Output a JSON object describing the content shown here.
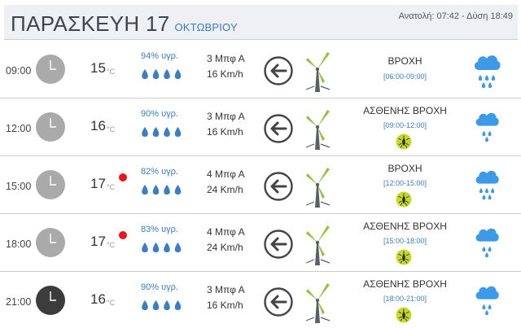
{
  "header": {
    "day": "ΠΑΡΑΣΚΕΥΗ 17",
    "month": "ΟΚΤΩΒΡΙΟΥ",
    "sun": "Ανατολή: 07:42 - Δύση 18:49"
  },
  "colors": {
    "accent": "#3a7ec5",
    "rain_icon": "#3d9ae8",
    "alert_fill": "#c6d92a",
    "hot_dot": "#e8161c",
    "turbine_blade": "#8fc43a",
    "clock_day": "#aaaaaa",
    "clock_night": "#3c3c3c"
  },
  "rows": [
    {
      "time": "09:00",
      "clock_icon": "clock-day-icon",
      "temp": "15",
      "unit": "°C",
      "hot": false,
      "humidity": "94% υγρ.",
      "drops_icon": "water-drops-icon",
      "wind_bf": "3 Μπφ Α",
      "wind_kmh": "16 Km/h",
      "wind_icon": "arrow-left-icon",
      "turbine_icon": "wind-turbine-icon",
      "description": "ΒΡΟΧΗ",
      "range": "[06:00-09:00]",
      "alert": false,
      "weather_icon": "heavy-rain-cloud-icon"
    },
    {
      "time": "12:00",
      "clock_icon": "clock-day-icon",
      "temp": "16",
      "unit": "°C",
      "hot": false,
      "humidity": "90% υγρ.",
      "drops_icon": "water-drops-icon",
      "wind_bf": "3 Μπφ Α",
      "wind_kmh": "16 Km/h",
      "wind_icon": "arrow-left-icon",
      "turbine_icon": "wind-turbine-icon",
      "description": "ΑΣΘΕΝΗΣ ΒΡΟΧΗ",
      "range": "[09:00-12:00]",
      "alert": true,
      "alert_icon": "mosquito-alert-icon",
      "weather_icon": "light-rain-cloud-icon"
    },
    {
      "time": "15:00",
      "clock_icon": "clock-day-icon",
      "temp": "17",
      "unit": "°C",
      "hot": true,
      "humidity": "82% υγρ.",
      "drops_icon": "water-drops-icon",
      "wind_bf": "4 Μπφ Α",
      "wind_kmh": "24 Km/h",
      "wind_icon": "arrow-left-icon",
      "turbine_icon": "wind-turbine-icon",
      "description": "ΒΡΟΧΗ",
      "range": "[12:00-15:00]",
      "alert": true,
      "alert_icon": "mosquito-alert-icon",
      "weather_icon": "heavy-rain-cloud-icon"
    },
    {
      "time": "18:00",
      "clock_icon": "clock-day-icon",
      "temp": "17",
      "unit": "°C",
      "hot": true,
      "humidity": "83% υγρ.",
      "drops_icon": "water-drops-icon",
      "wind_bf": "4 Μπφ Α",
      "wind_kmh": "24 Km/h",
      "wind_icon": "arrow-left-icon",
      "turbine_icon": "wind-turbine-icon",
      "description": "ΑΣΘΕΝΗΣ ΒΡΟΧΗ",
      "range": "[15:00-18:00]",
      "alert": true,
      "alert_icon": "mosquito-alert-icon",
      "weather_icon": "light-rain-cloud-icon"
    },
    {
      "time": "21:00",
      "clock_icon": "clock-night-icon",
      "temp": "16",
      "unit": "°C",
      "hot": false,
      "humidity": "90% υγρ.",
      "drops_icon": "water-drops-icon",
      "wind_bf": "3 Μπφ Α",
      "wind_kmh": "16 Km/h",
      "wind_icon": "arrow-left-icon",
      "turbine_icon": "wind-turbine-icon",
      "description": "ΑΣΘΕΝΗΣ ΒΡΟΧΗ",
      "range": "[18:00-21:00]",
      "alert": true,
      "alert_icon": "mosquito-alert-icon",
      "weather_icon": "light-rain-cloud-icon"
    }
  ]
}
